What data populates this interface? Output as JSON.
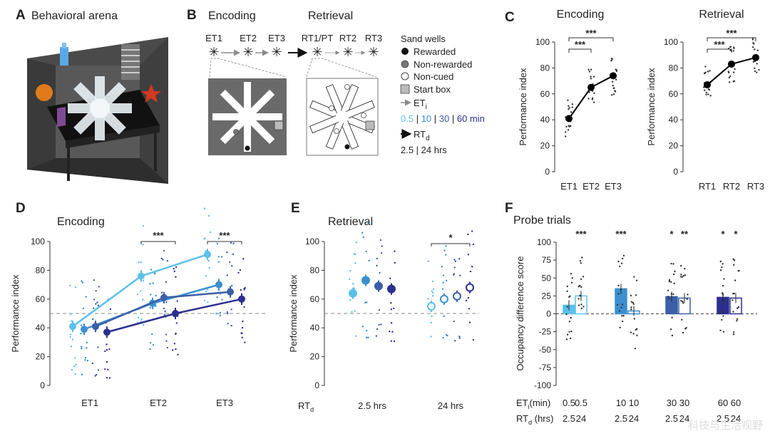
{
  "panels": {
    "A": {
      "letter": "A",
      "title": "Behavioral arena"
    },
    "B": {
      "letter": "B",
      "encoding_title": "Encoding",
      "retrieval_title": "Retrieval",
      "et_labels": [
        "ET1",
        "ET2",
        "ET3"
      ],
      "rt_labels": [
        "RT1/PT",
        "RT2",
        "RT3"
      ],
      "legend": {
        "title": "Sand wells",
        "rewarded": "Rewarded",
        "nonrewarded": "Non-rewarded",
        "noncued": "Non-cued",
        "startbox": "Start box",
        "et_main": "ET",
        "et_sub": "i",
        "et_intervals": [
          "0.5",
          "10",
          "30",
          "60 min"
        ],
        "rt_main": "RT",
        "rt_sub": "d",
        "rt_intervals": "2.5 | 24 hrs"
      }
    }
  },
  "colors": {
    "c05": "#5bc0eb",
    "c10": "#3a8fd0",
    "c30": "#3b5fa8",
    "c60": "#2b2f8f",
    "gray": "#7a7a7a",
    "arena_dark": "#6a6a6a"
  },
  "chart_data": [
    {
      "id": "C",
      "letter": "C",
      "type": "line",
      "subplots": [
        {
          "title": "Encoding",
          "categories": [
            "ET1",
            "ET2",
            "ET3"
          ],
          "values": [
            41,
            65,
            74
          ],
          "ylim": [
            0,
            100
          ],
          "yticks": [
            0,
            20,
            40,
            60,
            80,
            100
          ],
          "ylabel": "Performance index",
          "sig": [
            {
              "from": 0,
              "to": 1,
              "label": "***"
            },
            {
              "from": 0,
              "to": 2,
              "label": "***"
            }
          ]
        },
        {
          "title": "Retrieval",
          "categories": [
            "RT1",
            "RT2",
            "RT3"
          ],
          "values": [
            67,
            83,
            88
          ],
          "ylim": [
            0,
            100
          ],
          "yticks": [
            0,
            20,
            40,
            60,
            80,
            100
          ],
          "ylabel": "Performance index",
          "sig": [
            {
              "from": 0,
              "to": 1,
              "label": "***"
            },
            {
              "from": 0,
              "to": 2,
              "label": "***"
            }
          ]
        }
      ]
    },
    {
      "id": "D",
      "letter": "D",
      "type": "line",
      "title": "Encoding",
      "categories": [
        "ET1",
        "ET2",
        "ET3"
      ],
      "ylabel": "Performance index",
      "ylim": [
        0,
        100
      ],
      "yticks": [
        0,
        20,
        40,
        60,
        80,
        100
      ],
      "chance": 50,
      "series": [
        {
          "name": "0.5 min",
          "color_key": "c05",
          "values": [
            41,
            76,
            91
          ]
        },
        {
          "name": "10 min",
          "color_key": "c10",
          "values": [
            39,
            57,
            70
          ]
        },
        {
          "name": "30 min",
          "color_key": "c30",
          "values": [
            41,
            61,
            65
          ]
        },
        {
          "name": "60 min",
          "color_key": "c60",
          "values": [
            37,
            50,
            60
          ]
        }
      ],
      "sig": [
        {
          "category": 1,
          "label": "***"
        },
        {
          "category": 2,
          "label": "***"
        }
      ]
    },
    {
      "id": "E",
      "letter": "E",
      "type": "scatter",
      "title": "Retrieval",
      "groups": [
        "2.5 hrs",
        "24 hrs"
      ],
      "group_label_main": "RT",
      "group_label_sub": "d",
      "ylabel": "Performance index",
      "ylim": [
        0,
        100
      ],
      "yticks": [
        0,
        20,
        40,
        60,
        80,
        100
      ],
      "chance": 50,
      "series": [
        {
          "group": 0,
          "color_key": "c05",
          "value": 64,
          "filled": true
        },
        {
          "group": 0,
          "color_key": "c10",
          "value": 73,
          "filled": true
        },
        {
          "group": 0,
          "color_key": "c30",
          "value": 69,
          "filled": true
        },
        {
          "group": 0,
          "color_key": "c60",
          "value": 67,
          "filled": true
        },
        {
          "group": 1,
          "color_key": "c05",
          "value": 55,
          "filled": false
        },
        {
          "group": 1,
          "color_key": "c10",
          "value": 60,
          "filled": false
        },
        {
          "group": 1,
          "color_key": "c30",
          "value": 62,
          "filled": false
        },
        {
          "group": 1,
          "color_key": "c60",
          "value": 68,
          "filled": false
        }
      ],
      "sig": [
        {
          "group": 1,
          "label": "*"
        }
      ]
    },
    {
      "id": "F",
      "letter": "F",
      "type": "bar",
      "title": "Probe trials",
      "ylabel": "Occupancy difference score",
      "ylim": [
        -100,
        100
      ],
      "yticks": [
        -100,
        -75,
        -50,
        -25,
        0,
        25,
        50,
        75,
        100
      ],
      "bars": [
        {
          "et": "0.5",
          "rt": "2.5",
          "value": 12,
          "color_key": "c05",
          "filled": true,
          "sig": ""
        },
        {
          "et": "0.5",
          "rt": "24",
          "value": 25,
          "color_key": "c05",
          "filled": false,
          "sig": "***"
        },
        {
          "et": "10",
          "rt": "2.5",
          "value": 35,
          "color_key": "c10",
          "filled": true,
          "sig": "***"
        },
        {
          "et": "10",
          "rt": "24",
          "value": 4,
          "color_key": "c10",
          "filled": false,
          "sig": ""
        },
        {
          "et": "30",
          "rt": "2.5",
          "value": 24,
          "color_key": "c30",
          "filled": true,
          "sig": "*"
        },
        {
          "et": "30",
          "rt": "24",
          "value": 22,
          "color_key": "c30",
          "filled": false,
          "sig": "**"
        },
        {
          "et": "60",
          "rt": "2.5",
          "value": 23,
          "color_key": "c60",
          "filled": true,
          "sig": "*"
        },
        {
          "et": "60",
          "rt": "24",
          "value": 22,
          "color_key": "c60",
          "filled": false,
          "sig": "*"
        }
      ],
      "row1_main": "ET",
      "row1_sub": "i",
      "row1_unit": "(min)",
      "row2_main": "RT",
      "row2_sub": "d",
      "row2_unit": "(hrs)"
    }
  ],
  "watermark": "科技与生活视野"
}
